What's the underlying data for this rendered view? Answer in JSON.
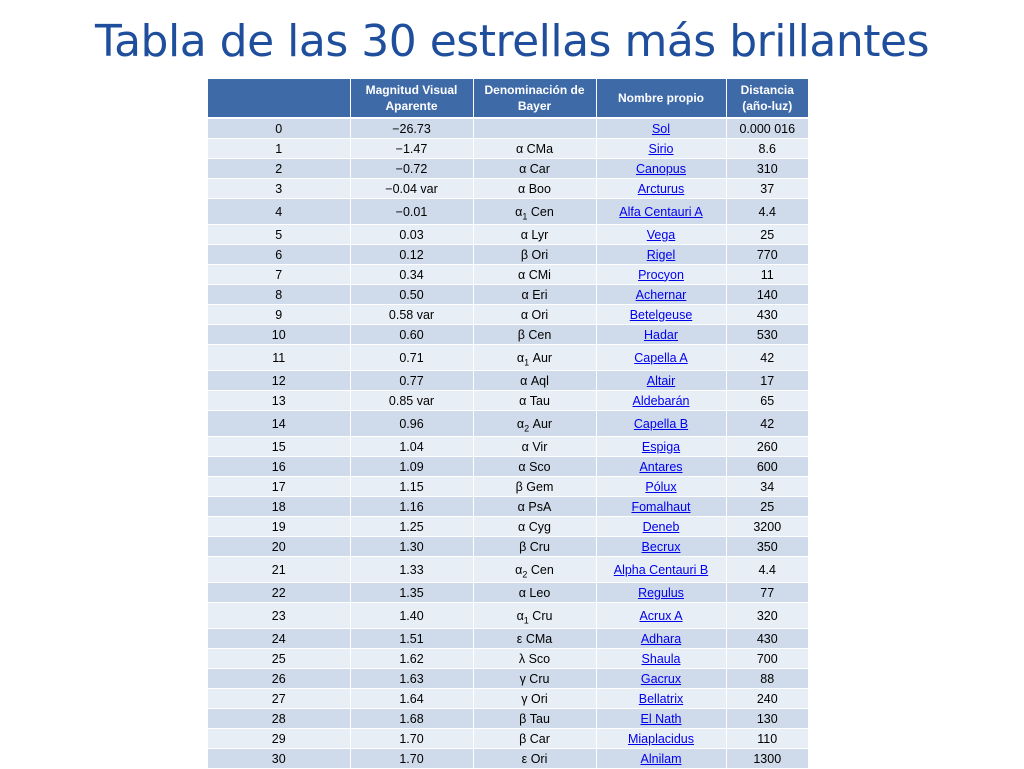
{
  "title": "Tabla de las 30 estrellas más brillantes",
  "colors": {
    "title": "#1f4e9c",
    "header_bg": "#3e6aa8",
    "row_dark": "#cfdbea",
    "row_light": "#e8eef6",
    "link": "#0000ee"
  },
  "table": {
    "headers": {
      "index": "",
      "magnitude": "Magnitud  Visual Aparente",
      "bayer": "Denominación de Bayer",
      "name": "Nombre propio",
      "distance": "Distancia (año-luz)"
    },
    "rows": [
      {
        "index": "0",
        "magnitude": "−26.73",
        "bayer_pre": "",
        "bayer_sub": "",
        "bayer_post": "",
        "name": "Sol",
        "distance": "0.000 016"
      },
      {
        "index": "1",
        "magnitude": "−1.47",
        "bayer_pre": "α",
        "bayer_sub": "",
        "bayer_post": " CMa",
        "name": "Sirio",
        "distance": "8.6"
      },
      {
        "index": "2",
        "magnitude": "−0.72",
        "bayer_pre": "α",
        "bayer_sub": "",
        "bayer_post": " Car",
        "name": "Canopus",
        "distance": "310"
      },
      {
        "index": "3",
        "magnitude": "−0.04 var",
        "bayer_pre": "α",
        "bayer_sub": "",
        "bayer_post": " Boo",
        "name": "Arcturus",
        "distance": "37"
      },
      {
        "index": "4",
        "magnitude": "−0.01",
        "bayer_pre": "α",
        "bayer_sub": "1",
        "bayer_post": " Cen",
        "name": "Alfa Centauri A",
        "distance": "4.4"
      },
      {
        "index": "5",
        "magnitude": "0.03",
        "bayer_pre": "α",
        "bayer_sub": "",
        "bayer_post": " Lyr",
        "name": "Vega",
        "distance": "25"
      },
      {
        "index": "6",
        "magnitude": "0.12",
        "bayer_pre": "β",
        "bayer_sub": "",
        "bayer_post": " Ori",
        "name": "Rigel",
        "distance": "770"
      },
      {
        "index": "7",
        "magnitude": "0.34",
        "bayer_pre": "α",
        "bayer_sub": "",
        "bayer_post": " CMi",
        "name": "Procyon",
        "distance": "11"
      },
      {
        "index": "8",
        "magnitude": "0.50",
        "bayer_pre": "α",
        "bayer_sub": "",
        "bayer_post": " Eri",
        "name": "Achernar",
        "distance": "140"
      },
      {
        "index": "9",
        "magnitude": "0.58 var",
        "bayer_pre": "α",
        "bayer_sub": "",
        "bayer_post": " Ori",
        "name": "Betelgeuse",
        "distance": "430"
      },
      {
        "index": "10",
        "magnitude": "0.60",
        "bayer_pre": "β",
        "bayer_sub": "",
        "bayer_post": " Cen",
        "name": "Hadar",
        "distance": "530"
      },
      {
        "index": "11",
        "magnitude": "0.71",
        "bayer_pre": "α",
        "bayer_sub": "1",
        "bayer_post": " Aur",
        "name": "Capella A",
        "distance": "42"
      },
      {
        "index": "12",
        "magnitude": "0.77",
        "bayer_pre": "α",
        "bayer_sub": "",
        "bayer_post": " Aql",
        "name": "Altair",
        "distance": "17"
      },
      {
        "index": "13",
        "magnitude": "0.85 var",
        "bayer_pre": "α",
        "bayer_sub": "",
        "bayer_post": " Tau",
        "name": "Aldebarán",
        "distance": "65"
      },
      {
        "index": "14",
        "magnitude": "0.96",
        "bayer_pre": "α",
        "bayer_sub": "2",
        "bayer_post": " Aur",
        "name": "Capella B",
        "distance": "42"
      },
      {
        "index": "15",
        "magnitude": "1.04",
        "bayer_pre": "α",
        "bayer_sub": "",
        "bayer_post": " Vir",
        "name": "Espiga",
        "distance": "260"
      },
      {
        "index": "16",
        "magnitude": "1.09",
        "bayer_pre": "α",
        "bayer_sub": "",
        "bayer_post": " Sco",
        "name": "Antares",
        "distance": "600"
      },
      {
        "index": "17",
        "magnitude": "1.15",
        "bayer_pre": "β",
        "bayer_sub": "",
        "bayer_post": " Gem",
        "name": "Pólux",
        "distance": "34"
      },
      {
        "index": "18",
        "magnitude": "1.16",
        "bayer_pre": "α",
        "bayer_sub": "",
        "bayer_post": " PsA",
        "name": "Fomalhaut",
        "distance": "25"
      },
      {
        "index": "19",
        "magnitude": "1.25",
        "bayer_pre": "α",
        "bayer_sub": "",
        "bayer_post": " Cyg",
        "name": "Deneb",
        "distance": "3200"
      },
      {
        "index": "20",
        "magnitude": "1.30",
        "bayer_pre": "β",
        "bayer_sub": "",
        "bayer_post": " Cru",
        "name": "Becrux",
        "distance": "350"
      },
      {
        "index": "21",
        "magnitude": "1.33",
        "bayer_pre": "α",
        "bayer_sub": "2",
        "bayer_post": " Cen",
        "name": "Alpha Centauri B",
        "distance": "4.4"
      },
      {
        "index": "22",
        "magnitude": "1.35",
        "bayer_pre": "α",
        "bayer_sub": "",
        "bayer_post": " Leo",
        "name": "Regulus",
        "distance": "77"
      },
      {
        "index": "23",
        "magnitude": "1.40",
        "bayer_pre": "α",
        "bayer_sub": "1",
        "bayer_post": " Cru",
        "name": "Acrux A",
        "distance": "320"
      },
      {
        "index": "24",
        "magnitude": "1.51",
        "bayer_pre": "ε",
        "bayer_sub": "",
        "bayer_post": " CMa",
        "name": "Adhara",
        "distance": "430"
      },
      {
        "index": "25",
        "magnitude": "1.62",
        "bayer_pre": "λ",
        "bayer_sub": "",
        "bayer_post": " Sco",
        "name": "Shaula",
        "distance": "700"
      },
      {
        "index": "26",
        "magnitude": "1.63",
        "bayer_pre": "γ",
        "bayer_sub": "",
        "bayer_post": " Cru",
        "name": "Gacrux",
        "distance": "88"
      },
      {
        "index": "27",
        "magnitude": "1.64",
        "bayer_pre": "γ",
        "bayer_sub": "",
        "bayer_post": " Ori",
        "name": "Bellatrix",
        "distance": "240"
      },
      {
        "index": "28",
        "magnitude": "1.68",
        "bayer_pre": "β",
        "bayer_sub": "",
        "bayer_post": " Tau",
        "name": "El Nath",
        "distance": "130"
      },
      {
        "index": "29",
        "magnitude": "1.70",
        "bayer_pre": "β",
        "bayer_sub": "",
        "bayer_post": " Car",
        "name": "Miaplacidus",
        "distance": "110"
      },
      {
        "index": "30",
        "magnitude": "1.70",
        "bayer_pre": "ε",
        "bayer_sub": "",
        "bayer_post": " Ori",
        "name": "Alnilam",
        "distance": "1300"
      }
    ]
  }
}
